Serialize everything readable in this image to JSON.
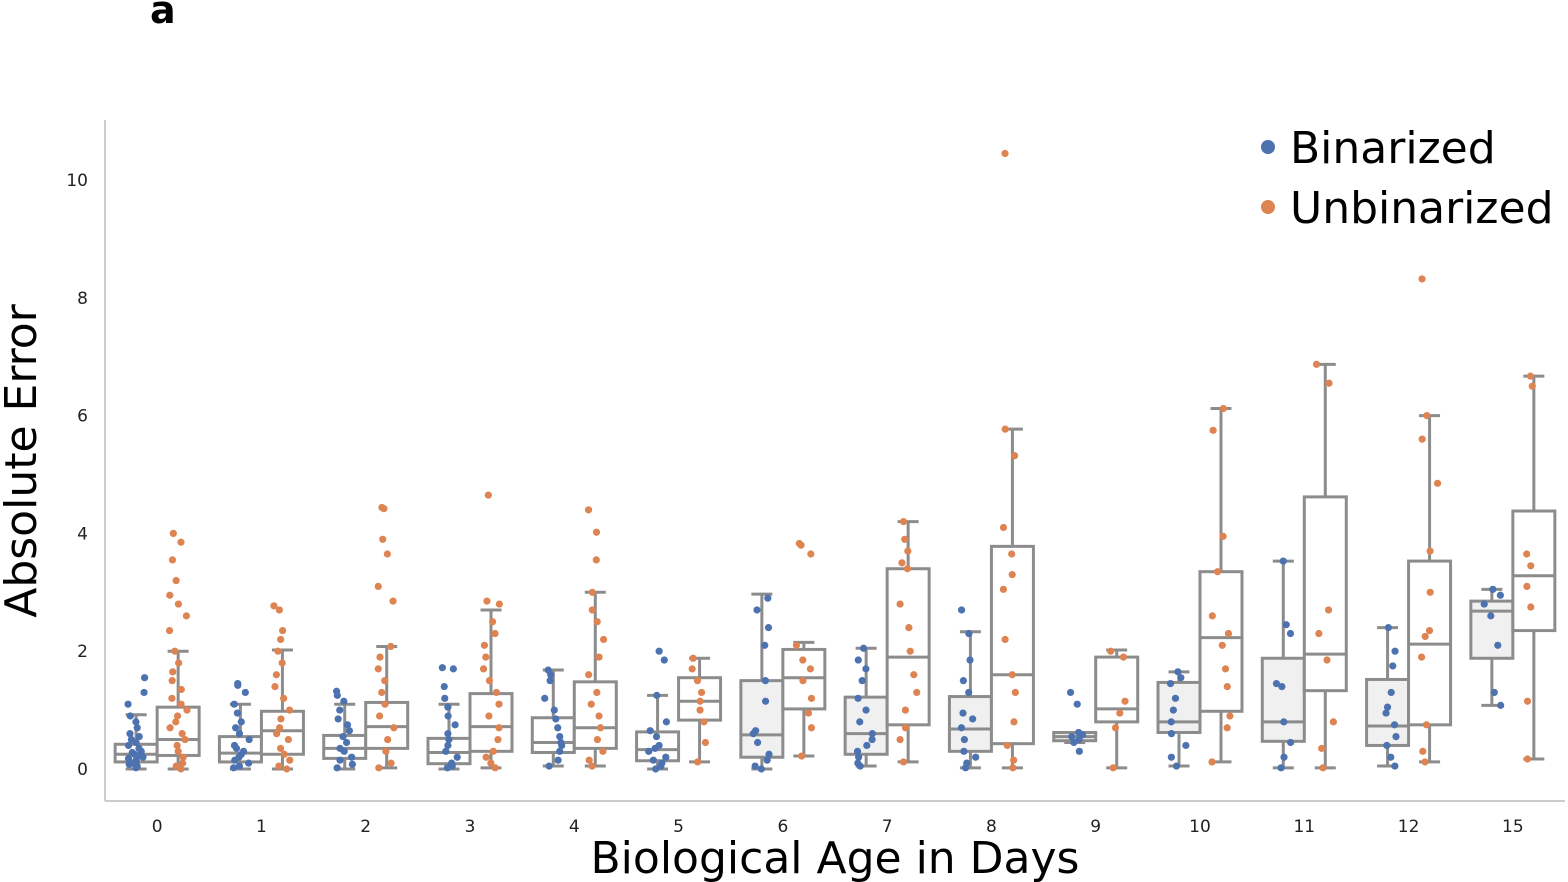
{
  "panel_label": "a",
  "chart_data": {
    "type": "box",
    "xlabel": "Biological Age in Days",
    "ylabel": "Absolute Error",
    "ylim": [
      -0.5,
      11
    ],
    "yticks": [
      0,
      2,
      4,
      6,
      8,
      10
    ],
    "categories": [
      "0",
      "1",
      "2",
      "3",
      "4",
      "5",
      "6",
      "7",
      "8",
      "9",
      "10",
      "11",
      "12",
      "15"
    ],
    "legend_position": "top-right",
    "series": [
      {
        "name": "Binarized",
        "color": "#4c72b0",
        "boxes": [
          {
            "whislo": 0.0,
            "q1": 0.12,
            "med": 0.25,
            "q3": 0.42,
            "whishi": 0.92
          },
          {
            "whislo": 0.0,
            "q1": 0.12,
            "med": 0.27,
            "q3": 0.55,
            "whishi": 1.1
          },
          {
            "whislo": 0.0,
            "q1": 0.18,
            "med": 0.35,
            "q3": 0.57,
            "whishi": 1.1
          },
          {
            "whislo": 0.0,
            "q1": 0.09,
            "med": 0.28,
            "q3": 0.52,
            "whishi": 1.1
          },
          {
            "whislo": 0.05,
            "q1": 0.28,
            "med": 0.45,
            "q3": 0.87,
            "whishi": 1.68
          },
          {
            "whislo": 0.0,
            "q1": 0.14,
            "med": 0.33,
            "q3": 0.63,
            "whishi": 1.25
          },
          {
            "whislo": 0.0,
            "q1": 0.2,
            "med": 0.58,
            "q3": 1.5,
            "whishi": 2.97
          },
          {
            "whislo": 0.05,
            "q1": 0.25,
            "med": 0.6,
            "q3": 1.22,
            "whishi": 2.05
          },
          {
            "whislo": 0.02,
            "q1": 0.3,
            "med": 0.68,
            "q3": 1.23,
            "whishi": 2.33
          },
          {
            "whislo": 0.45,
            "q1": 0.48,
            "med": 0.55,
            "q3": 0.62,
            "whishi": 0.62
          },
          {
            "whislo": 0.05,
            "q1": 0.62,
            "med": 0.8,
            "q3": 1.47,
            "whishi": 1.65
          },
          {
            "whislo": 0.02,
            "q1": 0.47,
            "med": 0.8,
            "q3": 1.88,
            "whishi": 3.53
          },
          {
            "whislo": 0.05,
            "q1": 0.4,
            "med": 0.73,
            "q3": 1.52,
            "whishi": 2.4
          },
          {
            "whislo": 1.08,
            "q1": 1.88,
            "med": 2.68,
            "q3": 2.85,
            "whishi": 3.05
          }
        ],
        "points": [
          [
            0.02,
            0.05,
            0.08,
            0.1,
            0.12,
            0.15,
            0.18,
            0.2,
            0.22,
            0.25,
            0.28,
            0.3,
            0.35,
            0.4,
            0.45,
            0.5,
            0.55,
            0.6,
            0.7,
            0.8,
            0.9,
            1.1,
            1.3,
            1.55
          ],
          [
            0.02,
            0.05,
            0.1,
            0.15,
            0.2,
            0.25,
            0.3,
            0.35,
            0.4,
            0.5,
            0.6,
            0.7,
            0.8,
            0.95,
            1.1,
            1.3,
            1.42,
            1.45
          ],
          [
            0.02,
            0.08,
            0.15,
            0.2,
            0.3,
            0.35,
            0.45,
            0.55,
            0.65,
            0.75,
            0.85,
            1.0,
            1.15,
            1.25,
            1.32
          ],
          [
            0.02,
            0.05,
            0.1,
            0.2,
            0.3,
            0.4,
            0.5,
            0.6,
            0.75,
            0.9,
            1.05,
            1.2,
            1.4,
            1.7,
            1.72
          ],
          [
            0.05,
            0.15,
            0.3,
            0.4,
            0.45,
            0.55,
            0.7,
            0.85,
            1.0,
            1.2,
            1.5,
            1.6,
            1.68
          ],
          [
            0.0,
            0.05,
            0.1,
            0.15,
            0.2,
            0.3,
            0.35,
            0.4,
            0.55,
            0.65,
            0.8,
            1.25,
            1.85,
            2.0
          ],
          [
            0.0,
            0.05,
            0.15,
            0.25,
            0.45,
            0.6,
            0.65,
            1.15,
            1.5,
            2.1,
            2.4,
            2.7,
            2.9
          ],
          [
            0.05,
            0.1,
            0.2,
            0.3,
            0.4,
            0.5,
            0.6,
            0.8,
            1.0,
            1.2,
            1.5,
            1.7,
            1.85,
            2.05
          ],
          [
            0.02,
            0.1,
            0.2,
            0.3,
            0.5,
            0.7,
            0.85,
            0.95,
            1.3,
            1.5,
            1.85,
            2.3,
            2.7
          ],
          [
            0.3,
            0.45,
            0.5,
            0.55,
            0.58,
            0.62,
            1.1,
            1.3
          ],
          [
            0.05,
            0.2,
            0.4,
            0.6,
            0.8,
            1.0,
            1.2,
            1.45,
            1.55,
            1.65
          ],
          [
            0.02,
            0.2,
            0.45,
            0.8,
            1.4,
            1.45,
            2.3,
            2.45,
            3.53
          ],
          [
            0.05,
            0.2,
            0.4,
            0.55,
            0.75,
            0.95,
            1.05,
            1.3,
            1.75,
            2.0,
            2.4
          ],
          [
            1.08,
            1.3,
            2.1,
            2.6,
            2.8,
            2.95,
            3.05
          ]
        ]
      },
      {
        "name": "Unbinarized",
        "color": "#dd8452",
        "boxes": [
          {
            "whislo": 0.0,
            "q1": 0.23,
            "med": 0.5,
            "q3": 1.05,
            "whishi": 2.0
          },
          {
            "whislo": 0.0,
            "q1": 0.25,
            "med": 0.65,
            "q3": 0.98,
            "whishi": 2.02
          },
          {
            "whislo": 0.02,
            "q1": 0.35,
            "med": 0.72,
            "q3": 1.13,
            "whishi": 2.08
          },
          {
            "whislo": 0.02,
            "q1": 0.3,
            "med": 0.72,
            "q3": 1.28,
            "whishi": 2.7
          },
          {
            "whislo": 0.05,
            "q1": 0.35,
            "med": 0.7,
            "q3": 1.48,
            "whishi": 3.0
          },
          {
            "whislo": 0.12,
            "q1": 0.83,
            "med": 1.15,
            "q3": 1.55,
            "whishi": 1.88
          },
          {
            "whislo": 0.22,
            "q1": 1.02,
            "med": 1.55,
            "q3": 2.03,
            "whishi": 2.15
          },
          {
            "whislo": 0.12,
            "q1": 0.75,
            "med": 1.9,
            "q3": 3.4,
            "whishi": 4.2
          },
          {
            "whislo": 0.02,
            "q1": 0.43,
            "med": 1.6,
            "q3": 3.78,
            "whishi": 5.77
          },
          {
            "whislo": 0.02,
            "q1": 0.8,
            "med": 1.02,
            "q3": 1.9,
            "whishi": 2.02
          },
          {
            "whislo": 0.12,
            "q1": 0.98,
            "med": 2.23,
            "q3": 3.35,
            "whishi": 6.12
          },
          {
            "whislo": 0.02,
            "q1": 1.33,
            "med": 1.95,
            "q3": 4.62,
            "whishi": 6.87
          },
          {
            "whislo": 0.12,
            "q1": 0.75,
            "med": 2.12,
            "q3": 3.53,
            "whishi": 6.0
          },
          {
            "whislo": 0.17,
            "q1": 2.35,
            "med": 3.28,
            "q3": 4.38,
            "whishi": 6.67
          }
        ],
        "points": [
          [
            0.0,
            0.05,
            0.1,
            0.2,
            0.3,
            0.4,
            0.5,
            0.6,
            0.7,
            0.8,
            0.9,
            1.0,
            1.1,
            1.2,
            1.35,
            1.5,
            1.65,
            1.8,
            2.0,
            2.35,
            2.6,
            2.8,
            2.95,
            3.2,
            3.55,
            3.85,
            4.0
          ],
          [
            0.0,
            0.05,
            0.15,
            0.25,
            0.35,
            0.5,
            0.6,
            0.7,
            0.85,
            1.0,
            1.2,
            1.4,
            1.6,
            1.8,
            2.0,
            2.2,
            2.35,
            2.7,
            2.77
          ],
          [
            0.02,
            0.1,
            0.3,
            0.5,
            0.7,
            0.9,
            1.1,
            1.3,
            1.5,
            1.7,
            1.9,
            2.08,
            2.85,
            3.1,
            3.65,
            3.9,
            4.42,
            4.44
          ],
          [
            0.02,
            0.1,
            0.2,
            0.3,
            0.5,
            0.7,
            0.9,
            1.1,
            1.3,
            1.5,
            1.7,
            1.9,
            2.1,
            2.3,
            2.5,
            2.8,
            2.85,
            4.65
          ],
          [
            0.05,
            0.15,
            0.3,
            0.5,
            0.7,
            0.9,
            1.1,
            1.3,
            1.6,
            1.9,
            2.2,
            2.5,
            2.7,
            3.0,
            3.55,
            4.02,
            4.4
          ],
          [
            0.12,
            0.45,
            0.8,
            1.0,
            1.15,
            1.3,
            1.5,
            1.7,
            1.88
          ],
          [
            0.22,
            0.7,
            0.95,
            1.2,
            1.5,
            1.7,
            1.85,
            2.1,
            3.65,
            3.8,
            3.83
          ],
          [
            0.12,
            0.5,
            0.7,
            1.0,
            1.3,
            1.6,
            2.0,
            2.4,
            2.8,
            3.4,
            3.5,
            3.7,
            3.9,
            4.2
          ],
          [
            0.02,
            0.15,
            0.4,
            0.8,
            1.3,
            1.6,
            2.2,
            3.05,
            3.3,
            3.65,
            4.1,
            5.32,
            5.77,
            10.45
          ],
          [
            0.02,
            0.7,
            0.95,
            1.15,
            1.9,
            2.0
          ],
          [
            0.12,
            0.7,
            0.9,
            1.4,
            1.7,
            2.1,
            2.3,
            2.6,
            3.35,
            3.95,
            5.75,
            6.12
          ],
          [
            0.02,
            0.35,
            0.8,
            1.85,
            2.3,
            2.7,
            6.55,
            6.87
          ],
          [
            0.12,
            0.3,
            0.75,
            1.9,
            2.25,
            2.35,
            3.0,
            3.7,
            4.85,
            5.6,
            6.0,
            8.32
          ],
          [
            0.17,
            1.15,
            2.75,
            3.1,
            3.45,
            3.65,
            6.5,
            6.67
          ]
        ]
      }
    ]
  }
}
